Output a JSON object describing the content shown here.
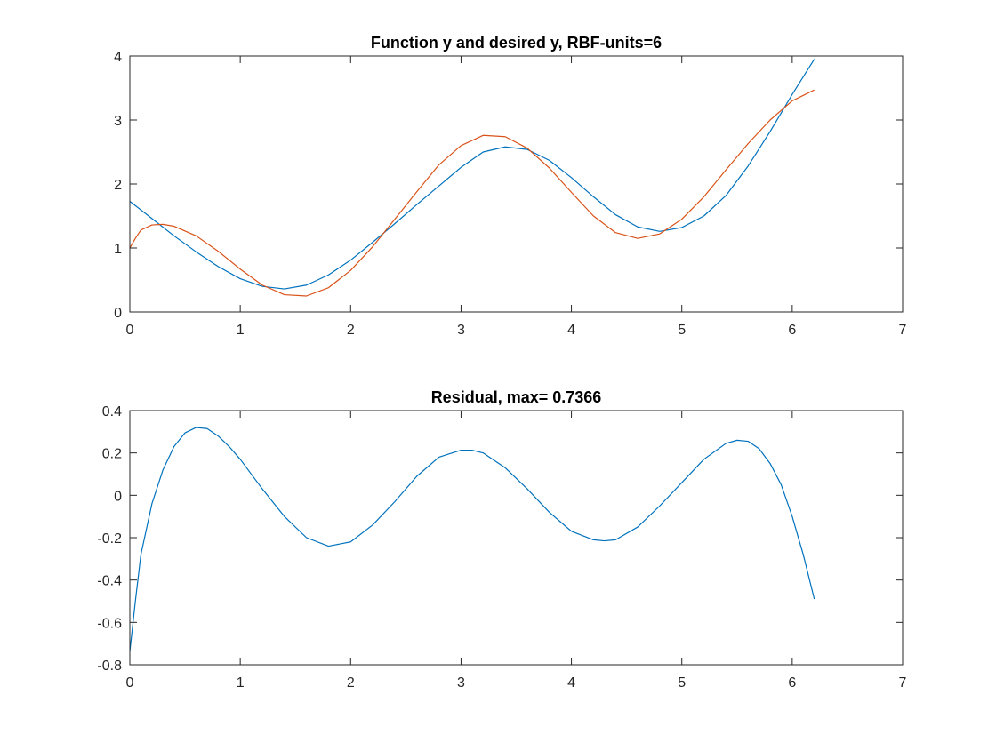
{
  "figure": {
    "background": "#ffffff",
    "axis_color": "#262626"
  },
  "chart_data": [
    {
      "type": "line",
      "title": "Function y and desired y, RBF-units=6",
      "xlabel": "",
      "ylabel": "",
      "xlim": [
        0,
        7
      ],
      "ylim": [
        0,
        4
      ],
      "x_ticks": [
        "0",
        "1",
        "2",
        "3",
        "4",
        "5",
        "6",
        "7"
      ],
      "y_ticks": [
        "0",
        "1",
        "2",
        "3",
        "4"
      ],
      "grid": false,
      "legend": "none",
      "series": [
        {
          "color": "#0072bd",
          "x": [
            0.0,
            0.2,
            0.4,
            0.6,
            0.8,
            1.0,
            1.2,
            1.4,
            1.6,
            1.8,
            2.0,
            2.2,
            2.4,
            2.6,
            2.8,
            3.0,
            3.2,
            3.4,
            3.6,
            3.8,
            4.0,
            4.2,
            4.4,
            4.6,
            4.8,
            5.0,
            5.2,
            5.4,
            5.6,
            5.8,
            6.0,
            6.2
          ],
          "y": [
            1.73,
            1.46,
            1.19,
            0.94,
            0.71,
            0.52,
            0.4,
            0.36,
            0.42,
            0.58,
            0.81,
            1.09,
            1.38,
            1.68,
            1.97,
            2.26,
            2.5,
            2.58,
            2.54,
            2.37,
            2.1,
            1.8,
            1.52,
            1.33,
            1.26,
            1.32,
            1.5,
            1.82,
            2.28,
            2.82,
            3.4,
            3.95
          ]
        },
        {
          "color": "#d95319",
          "x": [
            0.0,
            0.05,
            0.1,
            0.2,
            0.3,
            0.4,
            0.6,
            0.8,
            1.0,
            1.2,
            1.4,
            1.6,
            1.8,
            2.0,
            2.2,
            2.4,
            2.6,
            2.8,
            3.0,
            3.2,
            3.4,
            3.6,
            3.8,
            4.0,
            4.2,
            4.4,
            4.6,
            4.8,
            5.0,
            5.2,
            5.4,
            5.6,
            5.8,
            6.0,
            6.2
          ],
          "y": [
            1.0,
            1.15,
            1.28,
            1.36,
            1.37,
            1.34,
            1.19,
            0.95,
            0.67,
            0.42,
            0.27,
            0.25,
            0.38,
            0.65,
            1.02,
            1.45,
            1.88,
            2.3,
            2.6,
            2.76,
            2.74,
            2.56,
            2.25,
            1.87,
            1.5,
            1.24,
            1.15,
            1.22,
            1.45,
            1.8,
            2.22,
            2.63,
            3.0,
            3.3,
            3.47
          ]
        }
      ]
    },
    {
      "type": "line",
      "title": "Residual, max= 0.7366",
      "xlabel": "",
      "ylabel": "",
      "xlim": [
        0,
        7
      ],
      "ylim": [
        -0.8,
        0.4
      ],
      "x_ticks": [
        "0",
        "1",
        "2",
        "3",
        "4",
        "5",
        "6",
        "7"
      ],
      "y_ticks": [
        "-0.8",
        "-0.6",
        "-0.4",
        "-0.2",
        "0",
        "0.2",
        "0.4"
      ],
      "grid": false,
      "legend": "none",
      "series": [
        {
          "color": "#0072bd",
          "x": [
            0.0,
            0.05,
            0.1,
            0.2,
            0.3,
            0.4,
            0.5,
            0.6,
            0.7,
            0.8,
            0.9,
            1.0,
            1.2,
            1.4,
            1.6,
            1.8,
            2.0,
            2.2,
            2.4,
            2.6,
            2.8,
            3.0,
            3.1,
            3.2,
            3.4,
            3.6,
            3.8,
            4.0,
            4.2,
            4.3,
            4.4,
            4.6,
            4.8,
            5.0,
            5.2,
            5.4,
            5.5,
            5.6,
            5.7,
            5.8,
            5.9,
            6.0,
            6.1,
            6.2
          ],
          "y": [
            -0.737,
            -0.5,
            -0.28,
            -0.04,
            0.12,
            0.23,
            0.295,
            0.32,
            0.315,
            0.28,
            0.23,
            0.17,
            0.03,
            -0.1,
            -0.2,
            -0.24,
            -0.22,
            -0.14,
            -0.03,
            0.09,
            0.18,
            0.213,
            0.213,
            0.2,
            0.13,
            0.03,
            -0.08,
            -0.17,
            -0.21,
            -0.215,
            -0.21,
            -0.15,
            -0.05,
            0.06,
            0.17,
            0.245,
            0.26,
            0.255,
            0.22,
            0.15,
            0.05,
            -0.1,
            -0.28,
            -0.49
          ]
        }
      ]
    }
  ]
}
